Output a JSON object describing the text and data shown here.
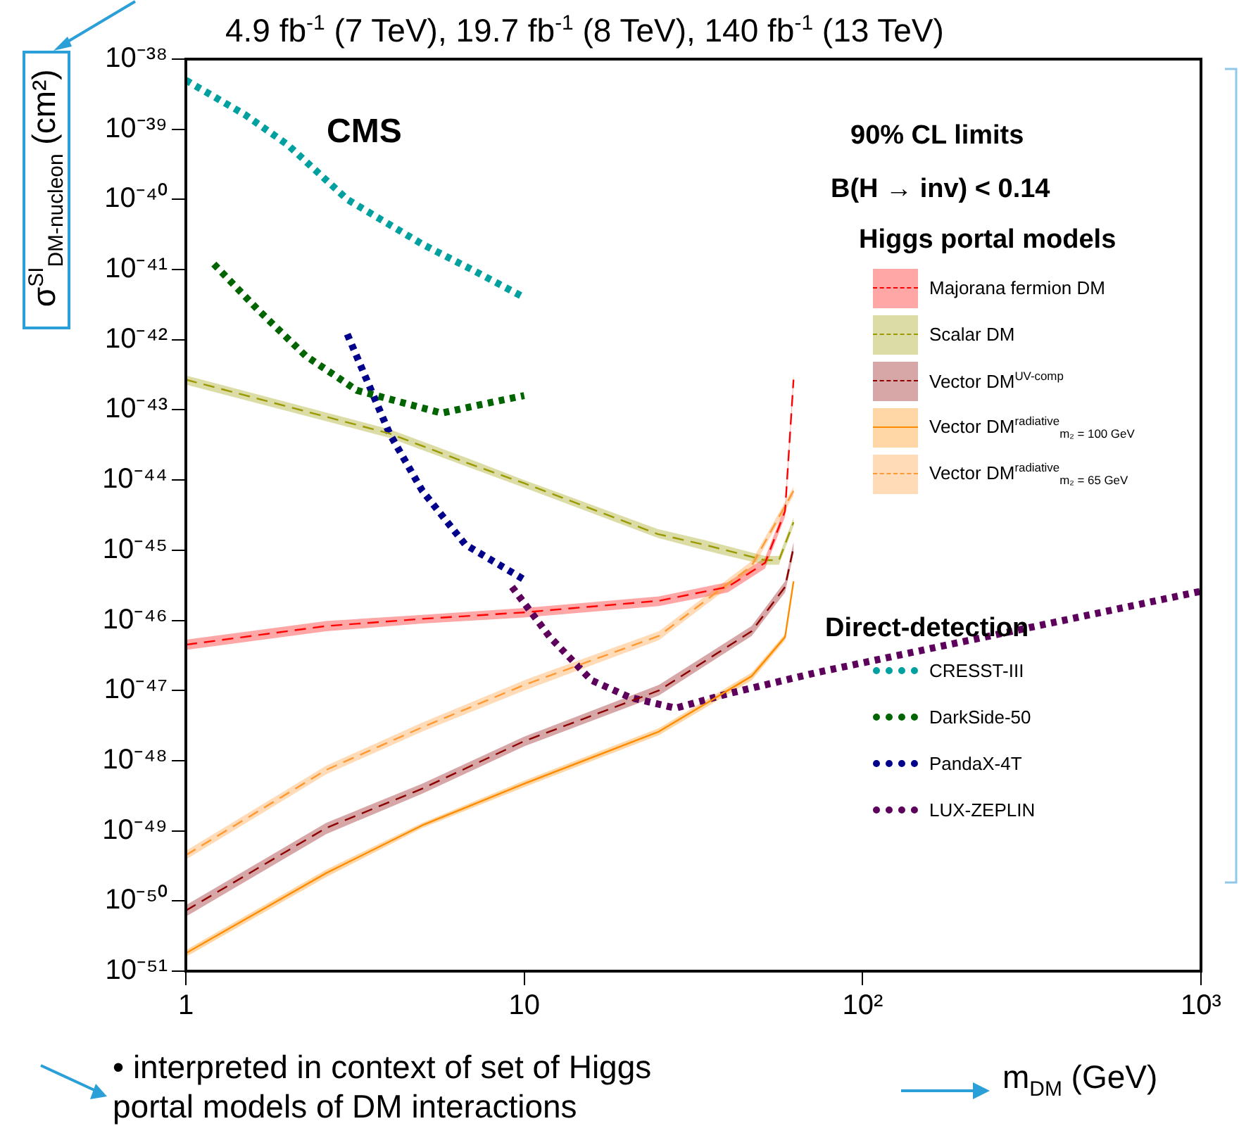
{
  "chart_data": {
    "type": "line",
    "title": "4.9 fb$^{-1}$ (7 TeV), 19.7 fb$^{-1}$ (8 TeV), 140 fb$^{-1}$ (13 TeV)",
    "xlabel": "m$_{DM}$ (GeV)",
    "ylabel": "σ$^{SI}$$_{DM-nucleon}$ (cm²)",
    "legend_title": "Higgs portal models",
    "log": "xy",
    "grid": false,
    "legend": "right",
    "xlim": [
      1,
      1000
    ],
    "xticks": [
      1,
      10,
      {
        "value": 100,
        "label": "10²"
      },
      {
        "value": 1000,
        "label": "10³"
      }
    ],
    "ylim": [
      1e-51,
      1e-38
    ],
    "yticks": [
      {
        "value": 1e-51,
        "label": "10⁻⁵¹"
      },
      {
        "value": 1e-50,
        "label": "10⁻⁵⁰"
      },
      {
        "value": 1e-49,
        "label": "10⁻⁴⁹"
      },
      {
        "value": 1e-48,
        "label": "10⁻⁴⁸"
      },
      {
        "value": 1e-47,
        "label": "10⁻⁴⁷"
      },
      {
        "value": 1e-46,
        "label": "10⁻⁴⁶"
      },
      {
        "value": 1e-45,
        "label": "10⁻⁴⁵"
      },
      {
        "value": 1e-44,
        "label": "10⁻⁴⁴"
      },
      {
        "value": 1e-43,
        "label": "10⁻⁴³"
      },
      {
        "value": 1e-42,
        "label": "10⁻⁴²"
      },
      {
        "value": 1e-41,
        "label": "10⁻⁴¹"
      },
      {
        "value": 1e-40,
        "label": "10⁻⁴⁰"
      },
      {
        "value": 1e-39,
        "label": "10⁻³⁹"
      },
      {
        "value": 1e-38,
        "label": "10⁻³⁸"
      }
    ],
    "annotations": [
      "CMS",
      "90% CL limits",
      "B(H → inv) < 0.14",
      "Direct-detection",
      "• interpreted in context of set of Higgs portal models of DM interactions"
    ],
    "series": [
      {
        "name": "Majorana fermion DM",
        "color": "#ff0000",
        "line_style": "dashed",
        "x": [
          1,
          2.6,
          5,
          10,
          25,
          40,
          51.5,
          59,
          62.5
        ],
        "values": [
          4.5e-47,
          8.3e-47,
          1.05e-46,
          1.3e-46,
          1.9e-46,
          3e-46,
          6.6e-46,
          3.6e-45,
          2.7e-43
        ],
        "lower": [
          3.8e-47,
          7e-47,
          9e-47,
          1.1e-46,
          1.6e-46,
          2.5e-46,
          5.5e-46,
          3e-45,
          2.3e-43
        ],
        "upper": [
          5.3e-47,
          9.8e-47,
          1.2e-46,
          1.5e-46,
          2.2e-46,
          3.5e-46,
          7.8e-46,
          4.2e-45,
          3.2e-43
        ]
      },
      {
        "name": "Scalar DM",
        "color": "#9a9a00",
        "line_style": "dashed",
        "x": [
          1,
          4,
          6.9,
          10,
          24.8,
          34,
          51.5,
          56.6,
          62.5
        ],
        "values": [
          2.7e-43,
          4.6e-44,
          1.7e-44,
          9e-45,
          1.7e-45,
          1.2e-45,
          7.2e-46,
          7.2e-46,
          2.5e-45
        ],
        "lower": [
          2.3e-43,
          4e-44,
          1.5e-44,
          7.8e-45,
          1.5e-45,
          1e-45,
          6.2e-46,
          6.2e-46,
          2.2e-45
        ],
        "upper": [
          3.1e-43,
          5.3e-44,
          2e-44,
          1e-44,
          2e-45,
          1.4e-45,
          8.3e-46,
          8.3e-46,
          2.9e-45
        ]
      },
      {
        "name": "Vector DM$^{UV-comp}$",
        "color": "#8b0000",
        "line_style": "dashed",
        "x": [
          1,
          2.6,
          5,
          10,
          25,
          47,
          59,
          62.5
        ],
        "values": [
          7.3e-51,
          1.1e-49,
          4e-49,
          1.9e-48,
          1e-47,
          7e-47,
          3e-46,
          1.1e-45
        ],
        "lower": [
          6e-51,
          9e-50,
          3.4e-49,
          1.6e-48,
          8.5e-48,
          6e-47,
          2.5e-46,
          9e-46
        ],
        "upper": [
          8.7e-51,
          1.3e-49,
          4.7e-49,
          2.2e-48,
          1.2e-47,
          8.3e-47,
          3.6e-46,
          1.3e-45
        ]
      },
      {
        "name": "Vector DM$^{radiative}$$_{m₂ = 100 GeV}$",
        "color": "#ff8c00",
        "line_style": "solid",
        "x": [
          1,
          2.6,
          5,
          10,
          25,
          47,
          59,
          62.5
        ],
        "values": [
          1.8e-51,
          2.5e-50,
          1.2e-49,
          4.7e-49,
          2.6e-48,
          1.6e-47,
          5.8e-47,
          3.6e-46
        ],
        "lower": [
          1.6e-51,
          2.2e-50,
          1.1e-49,
          4.2e-49,
          2.3e-48,
          1.4e-47,
          5.2e-47,
          3.2e-46
        ],
        "upper": [
          2e-51,
          2.8e-50,
          1.3e-49,
          5.2e-49,
          2.9e-48,
          1.8e-47,
          6.4e-47,
          4e-46
        ]
      },
      {
        "name": "Vector DM$^{radiative}$$_{m₂ = 65 GeV}$",
        "color": "#ff9933",
        "line_style": "dashed",
        "x": [
          1,
          2.6,
          5,
          10,
          25,
          47,
          62.5
        ],
        "values": [
          4.5e-50,
          7.4e-49,
          3e-48,
          1.2e-47,
          6e-47,
          6e-46,
          7e-45
        ],
        "lower": [
          3.9e-50,
          6.4e-49,
          2.6e-48,
          1e-47,
          5.2e-47,
          5.2e-46,
          6e-45
        ],
        "upper": [
          5.2e-50,
          8.5e-49,
          3.5e-48,
          1.4e-47,
          7e-47,
          7e-46,
          8e-45
        ]
      },
      {
        "name": "CRESST-III",
        "color": "#00a0a0",
        "line_style": "dotted",
        "x": [
          1,
          1.5,
          2,
          3,
          5,
          7,
          10
        ],
        "values": [
          5e-39,
          1.6e-39,
          6e-40,
          1e-40,
          2.3e-41,
          1e-41,
          4e-42
        ]
      },
      {
        "name": "DarkSide-50",
        "color": "#006400",
        "line_style": "dotted",
        "x": [
          1.21,
          1.63,
          2.26,
          3.2,
          5.7,
          7.5,
          10
        ],
        "values": [
          1.2e-41,
          2.7e-42,
          5.9e-43,
          1.9e-43,
          9e-44,
          1.2e-43,
          1.6e-43
        ]
      },
      {
        "name": "PandaX-4T",
        "color": "#00008b",
        "line_style": "dotted",
        "x": [
          3,
          4,
          5,
          6.7,
          10
        ],
        "values": [
          1.2e-42,
          4.6e-44,
          7e-45,
          1.2e-45,
          3.8e-46
        ]
      },
      {
        "name": "LUX-ZEPLIN",
        "color": "#5c005c",
        "line_style": "dotted",
        "x": [
          9.2,
          11.9,
          15.8,
          20.5,
          28,
          40,
          73,
          300,
          1000
        ],
        "values": [
          3e-46,
          5.8e-47,
          1.4e-47,
          8e-48,
          5.6e-48,
          9e-48,
          1.8e-47,
          7.6e-47,
          2.6e-46
        ]
      }
    ]
  }
}
